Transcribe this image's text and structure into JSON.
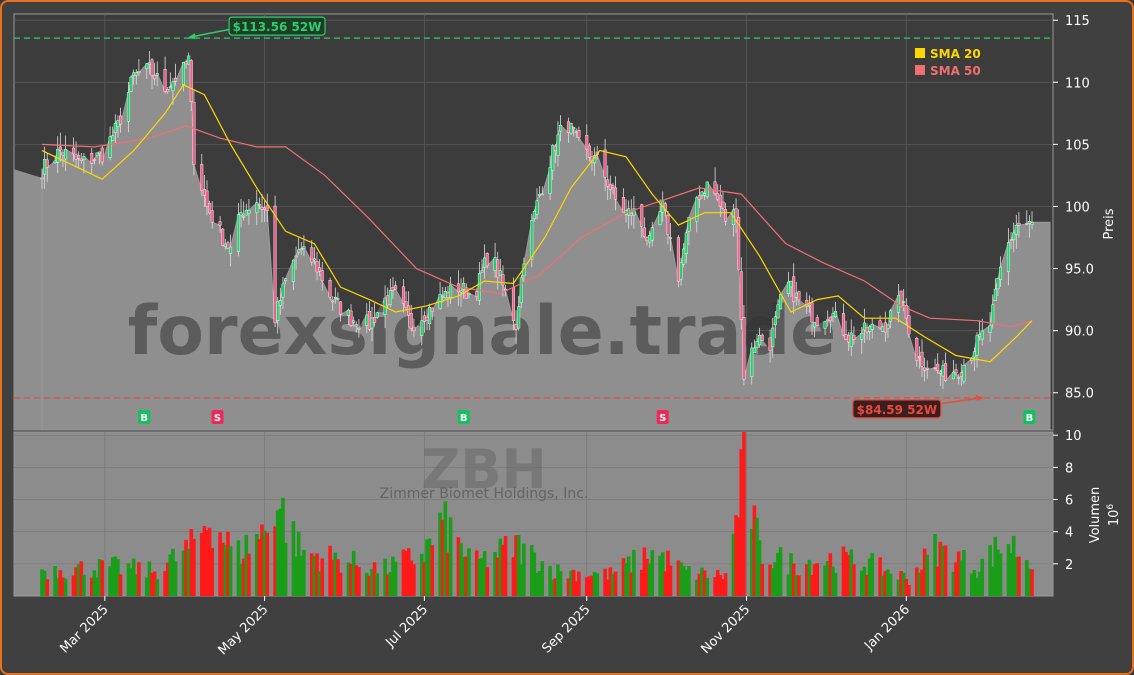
{
  "chart_data": {
    "type": "candlestick",
    "ticker": "ZBH",
    "company": "Zimmer Biomet Holdings, Inc.",
    "watermark": "forexsignale.trade",
    "price_axis_label": "Preis",
    "volume_axis_label": "Volumen",
    "volume_unit": "10",
    "volume_unit_exp": "6",
    "price_ticks": [
      "85.0",
      "90.0",
      "95.0",
      "100",
      "105",
      "110",
      "115"
    ],
    "price_tick_values": [
      85,
      90,
      95,
      100,
      105,
      110,
      115
    ],
    "volume_ticks": [
      "2",
      "4",
      "6",
      "8",
      "10"
    ],
    "volume_tick_values": [
      2,
      4,
      6,
      8,
      10
    ],
    "x_ticks": [
      "Mar 2025",
      "May 2025",
      "Jul 2025",
      "Sep 2025",
      "Nov 2025",
      "Jan 2026"
    ],
    "x_tick_dates": [
      "2025-03-01",
      "2025-05-01",
      "2025-07-01",
      "2025-09-01",
      "2025-11-01",
      "2026-01-01"
    ],
    "price_range": [
      82.0,
      115.5
    ],
    "volume_range": [
      0,
      10.2
    ],
    "date_range": [
      "2025-02-05",
      "2026-02-18"
    ],
    "high_52w": {
      "label": "$113.56 52W",
      "value": 113.56,
      "date": "2025-04-01"
    },
    "low_52w": {
      "label": "$84.59 52W",
      "value": 84.59,
      "date": "2026-01-31"
    },
    "legend": [
      {
        "name": "SMA 20",
        "color": "#ffd700"
      },
      {
        "name": "SMA 50",
        "color": "#f07070"
      }
    ],
    "signals": [
      {
        "type": "B",
        "date": "2025-03-16"
      },
      {
        "type": "S",
        "date": "2025-04-13"
      },
      {
        "type": "B",
        "date": "2025-07-16"
      },
      {
        "type": "S",
        "date": "2025-09-30"
      },
      {
        "type": "B",
        "date": "2026-02-17"
      }
    ],
    "price_path": [
      [
        "2025-02-05",
        103.0
      ],
      [
        "2025-02-12",
        104.5
      ],
      [
        "2025-02-20",
        103.5
      ],
      [
        "2025-02-28",
        104.2
      ],
      [
        "2025-03-06",
        106.5
      ],
      [
        "2025-03-12",
        110.5
      ],
      [
        "2025-03-18",
        111.0
      ],
      [
        "2025-03-24",
        109.5
      ],
      [
        "2025-03-31",
        111.0
      ],
      [
        "2025-04-02",
        111.8
      ],
      [
        "2025-04-04",
        104.0
      ],
      [
        "2025-04-09",
        100.0
      ],
      [
        "2025-04-15",
        97.5
      ],
      [
        "2025-04-18",
        96.5
      ],
      [
        "2025-04-22",
        99.5
      ],
      [
        "2025-04-28",
        100.5
      ],
      [
        "2025-05-02",
        99.5
      ],
      [
        "2025-05-05",
        91.0
      ],
      [
        "2025-05-09",
        94.0
      ],
      [
        "2025-05-14",
        96.5
      ],
      [
        "2025-05-20",
        95.5
      ],
      [
        "2025-05-27",
        92.5
      ],
      [
        "2025-06-03",
        91.0
      ],
      [
        "2025-06-10",
        90.5
      ],
      [
        "2025-06-16",
        92.5
      ],
      [
        "2025-06-20",
        92.8
      ],
      [
        "2025-06-26",
        90.5
      ],
      [
        "2025-07-02",
        91.5
      ],
      [
        "2025-07-08",
        92.8
      ],
      [
        "2025-07-14",
        93.5
      ],
      [
        "2025-07-20",
        92.8
      ],
      [
        "2025-07-26",
        96.5
      ],
      [
        "2025-08-01",
        93.0
      ],
      [
        "2025-08-05",
        90.5
      ],
      [
        "2025-08-08",
        96.0
      ],
      [
        "2025-08-14",
        101.0
      ],
      [
        "2025-08-20",
        105.0
      ],
      [
        "2025-08-24",
        107.0
      ],
      [
        "2025-08-30",
        104.5
      ],
      [
        "2025-09-06",
        103.5
      ],
      [
        "2025-09-12",
        100.5
      ],
      [
        "2025-09-16",
        99.5
      ],
      [
        "2025-09-20",
        99.5
      ],
      [
        "2025-09-25",
        97.0
      ],
      [
        "2025-09-30",
        100.0
      ],
      [
        "2025-10-06",
        94.5
      ],
      [
        "2025-10-12",
        100.5
      ],
      [
        "2025-10-18",
        102.0
      ],
      [
        "2025-10-24",
        99.0
      ],
      [
        "2025-10-28",
        99.5
      ],
      [
        "2025-10-31",
        86.5
      ],
      [
        "2025-11-05",
        89.5
      ],
      [
        "2025-11-10",
        89.0
      ],
      [
        "2025-11-16",
        94.0
      ],
      [
        "2025-11-22",
        92.0
      ],
      [
        "2025-11-28",
        91.0
      ],
      [
        "2025-12-03",
        91.5
      ],
      [
        "2025-12-10",
        89.5
      ],
      [
        "2025-12-17",
        90.0
      ],
      [
        "2025-12-24",
        90.5
      ],
      [
        "2025-12-30",
        92.5
      ],
      [
        "2026-01-05",
        88.0
      ],
      [
        "2026-01-10",
        87.0
      ],
      [
        "2026-01-15",
        86.5
      ],
      [
        "2026-01-22",
        87.0
      ],
      [
        "2026-01-28",
        89.0
      ],
      [
        "2026-02-02",
        90.5
      ],
      [
        "2026-02-07",
        96.0
      ],
      [
        "2026-02-12",
        98.5
      ],
      [
        "2026-02-18",
        98.5
      ]
    ],
    "sma20": [
      [
        "2025-02-05",
        104.5
      ],
      [
        "2025-02-20",
        103.0
      ],
      [
        "2025-02-28",
        102.2
      ],
      [
        "2025-03-12",
        104.5
      ],
      [
        "2025-03-24",
        107.5
      ],
      [
        "2025-03-31",
        109.8
      ],
      [
        "2025-04-08",
        109.0
      ],
      [
        "2025-04-18",
        105.0
      ],
      [
        "2025-04-28",
        101.5
      ],
      [
        "2025-05-09",
        98.0
      ],
      [
        "2025-05-20",
        97.0
      ],
      [
        "2025-05-30",
        93.5
      ],
      [
        "2025-06-10",
        92.5
      ],
      [
        "2025-06-20",
        91.5
      ],
      [
        "2025-07-02",
        92.0
      ],
      [
        "2025-07-14",
        92.8
      ],
      [
        "2025-07-24",
        94.0
      ],
      [
        "2025-08-04",
        93.8
      ],
      [
        "2025-08-16",
        97.5
      ],
      [
        "2025-08-26",
        101.5
      ],
      [
        "2025-09-06",
        104.5
      ],
      [
        "2025-09-16",
        104.0
      ],
      [
        "2025-09-26",
        101.0
      ],
      [
        "2025-10-06",
        98.5
      ],
      [
        "2025-10-16",
        99.5
      ],
      [
        "2025-10-26",
        99.5
      ],
      [
        "2025-11-06",
        96.0
      ],
      [
        "2025-11-18",
        91.5
      ],
      [
        "2025-11-28",
        92.5
      ],
      [
        "2025-12-06",
        92.8
      ],
      [
        "2025-12-16",
        91.0
      ],
      [
        "2025-12-28",
        91.0
      ],
      [
        "2026-01-08",
        89.5
      ],
      [
        "2026-01-20",
        88.0
      ],
      [
        "2026-02-02",
        87.5
      ],
      [
        "2026-02-12",
        89.5
      ],
      [
        "2026-02-18",
        90.8
      ]
    ],
    "sma50": [
      [
        "2025-02-05",
        105.0
      ],
      [
        "2025-02-25",
        104.8
      ],
      [
        "2025-03-18",
        105.5
      ],
      [
        "2025-04-01",
        106.5
      ],
      [
        "2025-04-14",
        105.5
      ],
      [
        "2025-04-28",
        104.8
      ],
      [
        "2025-05-09",
        104.8
      ],
      [
        "2025-05-24",
        102.5
      ],
      [
        "2025-06-10",
        99.0
      ],
      [
        "2025-06-28",
        95.0
      ],
      [
        "2025-07-14",
        93.5
      ],
      [
        "2025-07-30",
        93.0
      ],
      [
        "2025-08-14",
        94.5
      ],
      [
        "2025-08-30",
        97.5
      ],
      [
        "2025-09-16",
        99.5
      ],
      [
        "2025-09-30",
        100.5
      ],
      [
        "2025-10-14",
        101.5
      ],
      [
        "2025-10-30",
        101.0
      ],
      [
        "2025-11-16",
        97.0
      ],
      [
        "2025-11-30",
        95.5
      ],
      [
        "2025-12-16",
        94.0
      ],
      [
        "2025-12-30",
        92.0
      ],
      [
        "2026-01-10",
        91.0
      ],
      [
        "2026-01-28",
        90.8
      ],
      [
        "2026-02-10",
        90.3
      ],
      [
        "2026-02-18",
        90.8
      ]
    ],
    "volume_samples": [
      [
        "2025-02-05",
        1.8
      ],
      [
        "2025-02-20",
        1.9
      ],
      [
        "2025-03-06",
        2.0
      ],
      [
        "2025-03-20",
        1.7
      ],
      [
        "2025-04-04",
        3.5
      ],
      [
        "2025-04-10",
        5.5
      ],
      [
        "2025-04-20",
        2.8
      ],
      [
        "2025-05-01",
        4.5
      ],
      [
        "2025-05-05",
        6.8
      ],
      [
        "2025-05-15",
        3.0
      ],
      [
        "2025-05-30",
        2.5
      ],
      [
        "2025-06-15",
        1.8
      ],
      [
        "2025-07-01",
        3.0
      ],
      [
        "2025-07-08",
        5.0
      ],
      [
        "2025-07-20",
        2.2
      ],
      [
        "2025-08-05",
        3.5
      ],
      [
        "2025-08-20",
        1.7
      ],
      [
        "2025-09-10",
        1.5
      ],
      [
        "2025-09-26",
        3.0
      ],
      [
        "2025-10-10",
        1.6
      ],
      [
        "2025-10-25",
        1.4
      ],
      [
        "2025-10-31",
        9.0
      ],
      [
        "2025-11-06",
        3.0
      ],
      [
        "2025-11-20",
        2.2
      ],
      [
        "2025-12-05",
        2.6
      ],
      [
        "2025-12-18",
        2.2
      ],
      [
        "2026-01-02",
        1.2
      ],
      [
        "2026-01-12",
        3.3
      ],
      [
        "2026-01-28",
        2.0
      ],
      [
        "2026-02-08",
        3.8
      ],
      [
        "2026-02-18",
        2.4
      ]
    ]
  }
}
